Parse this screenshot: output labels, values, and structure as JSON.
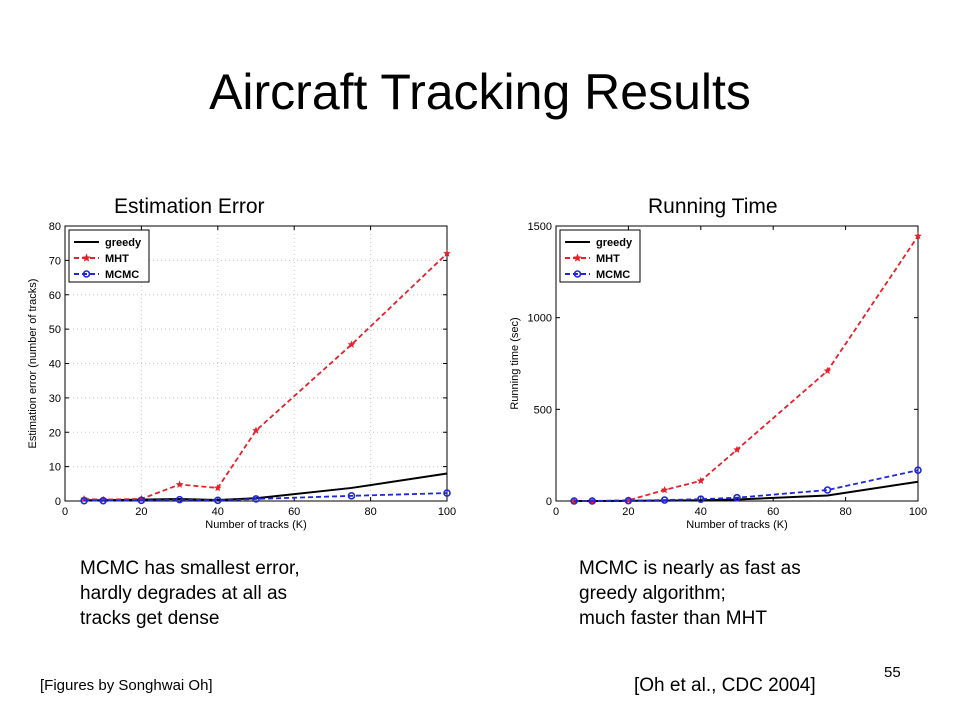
{
  "slide": {
    "title": "Aircraft Tracking Results",
    "credit": "[Figures by Songhwai Oh]",
    "citation": "[Oh et al., CDC 2004]",
    "page_number": "55"
  },
  "captions": {
    "left": [
      "MCMC has smallest error,",
      "hardly degrades at all as",
      "tracks get dense"
    ],
    "right": [
      "MCMC is nearly as fast as",
      "greedy algorithm;",
      "much faster than MHT"
    ]
  },
  "colors": {
    "greedy": "#000000",
    "MHT": "#e8202a",
    "MCMC": "#1f28d8",
    "grid": "#c8c8c8"
  },
  "chart_data": [
    {
      "type": "line",
      "heading": "Estimation Error",
      "xlabel": "Number of tracks (K)",
      "ylabel": "Estimation error (number of tracks)",
      "xlim": [
        0,
        100
      ],
      "ylim": [
        0,
        80
      ],
      "xticks": [
        0,
        20,
        40,
        60,
        80,
        100
      ],
      "yticks": [
        0,
        10,
        20,
        30,
        40,
        50,
        60,
        70,
        80
      ],
      "grid": true,
      "legend_position": "top-left",
      "series": [
        {
          "name": "greedy",
          "style": "solid",
          "marker": "none",
          "x": [
            5,
            10,
            20,
            30,
            40,
            50,
            75,
            100
          ],
          "y": [
            0.2,
            0.2,
            0.4,
            0.6,
            0.3,
            0.8,
            3.8,
            8
          ]
        },
        {
          "name": "MHT",
          "style": "dashed",
          "marker": "star",
          "x": [
            5,
            10,
            20,
            30,
            40,
            50,
            75,
            100
          ],
          "y": [
            0.6,
            0.4,
            0.6,
            4.8,
            3.8,
            20.5,
            45.5,
            72
          ]
        },
        {
          "name": "MCMC",
          "style": "dashed",
          "marker": "circle",
          "x": [
            5,
            10,
            20,
            30,
            40,
            50,
            75,
            100
          ],
          "y": [
            0.1,
            0.1,
            0.2,
            0.4,
            0.2,
            0.6,
            1.5,
            2.3
          ]
        }
      ]
    },
    {
      "type": "line",
      "heading": "Running Time",
      "xlabel": "Number of tracks (K)",
      "ylabel": "Running time (sec)",
      "xlim": [
        0,
        100
      ],
      "ylim": [
        0,
        1500
      ],
      "xticks": [
        0,
        20,
        40,
        60,
        80,
        100
      ],
      "yticks": [
        0,
        500,
        1000,
        1500
      ],
      "grid": false,
      "legend_position": "top-left",
      "series": [
        {
          "name": "greedy",
          "style": "solid",
          "marker": "none",
          "x": [
            5,
            10,
            20,
            30,
            40,
            50,
            75,
            100
          ],
          "y": [
            0,
            0,
            1,
            2,
            4,
            8,
            30,
            105
          ]
        },
        {
          "name": "MHT",
          "style": "dashed",
          "marker": "star",
          "x": [
            5,
            10,
            20,
            30,
            40,
            50,
            75,
            100
          ],
          "y": [
            0,
            0,
            4,
            60,
            110,
            280,
            710,
            1445
          ]
        },
        {
          "name": "MCMC",
          "style": "dashed",
          "marker": "circle",
          "x": [
            5,
            10,
            20,
            30,
            40,
            50,
            75,
            100
          ],
          "y": [
            0,
            0,
            2,
            5,
            10,
            18,
            60,
            168
          ]
        }
      ]
    }
  ]
}
